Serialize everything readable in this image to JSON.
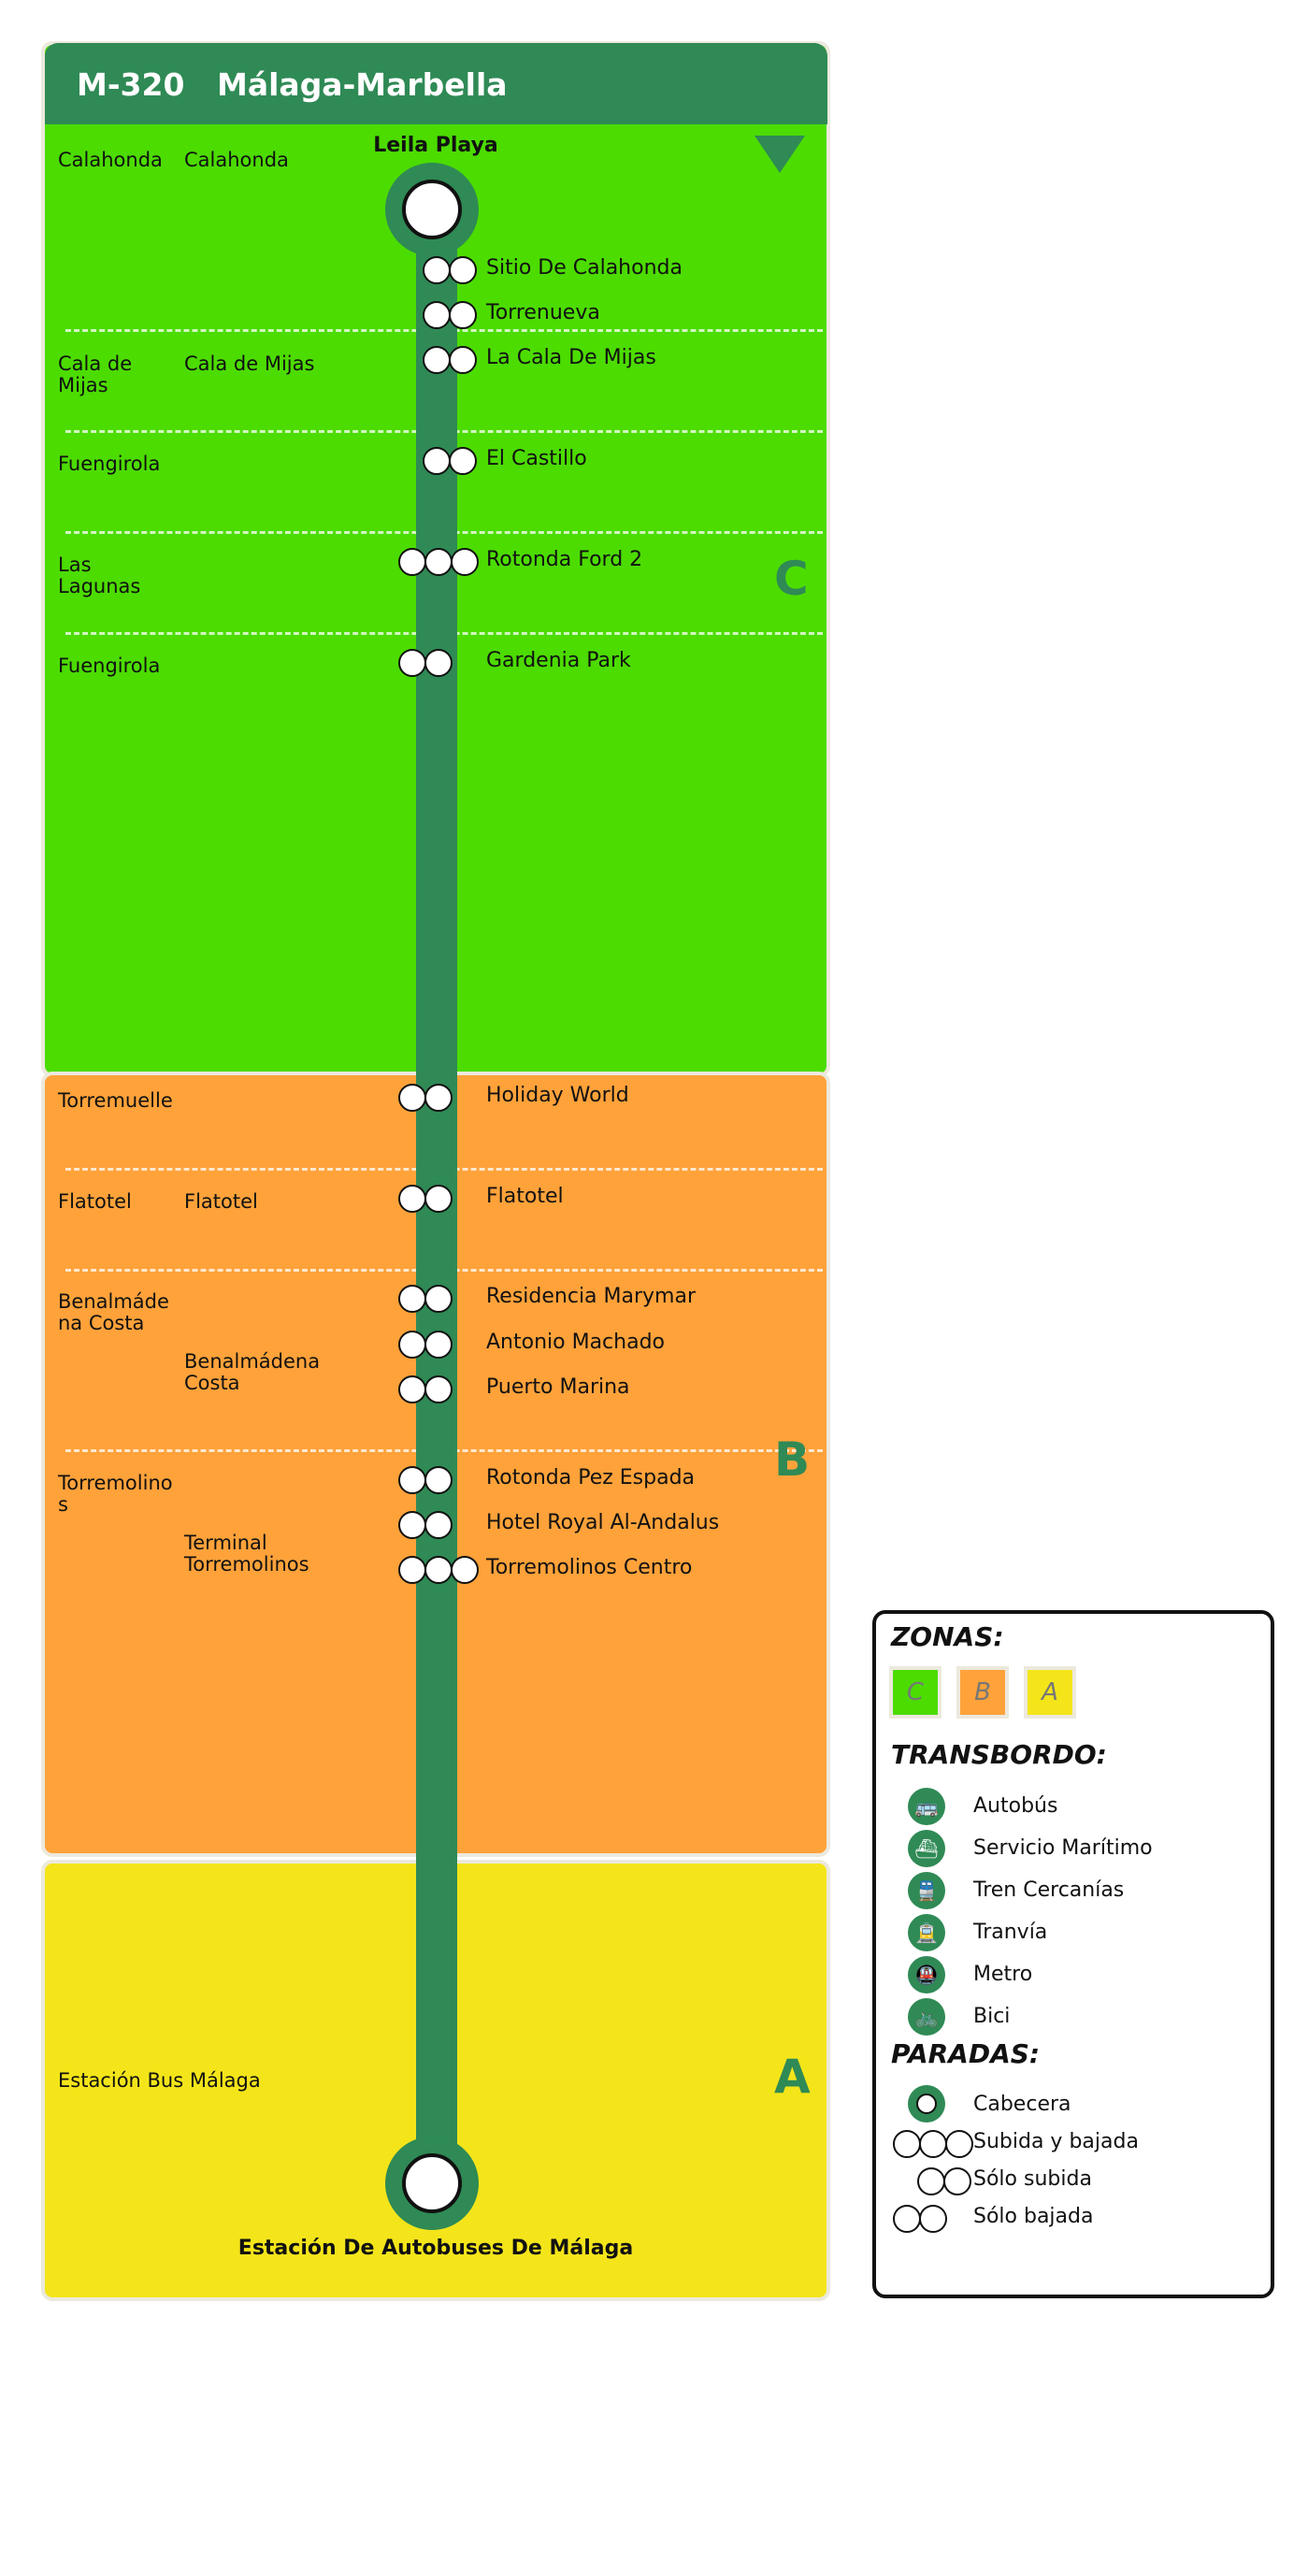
{
  "route": {
    "code": "M-320",
    "name": "Málaga-Marbella"
  },
  "colors": {
    "zone_c": "#4cdc00",
    "zone_b": "#ffa23a",
    "zone_a": "#f4e51a",
    "line": "#2f8a55"
  },
  "zones": [
    {
      "letter": "C"
    },
    {
      "letter": "B"
    },
    {
      "letter": "A"
    }
  ],
  "terminals": {
    "start": "Leila Playa",
    "end": "Estación De Autobuses De Málaga"
  },
  "localities": [
    {
      "text": "Calahonda"
    },
    {
      "text": "Calahonda"
    },
    {
      "text": "Cala de Mijas"
    },
    {
      "text": "Cala de Mijas"
    },
    {
      "text": "Fuengirola"
    },
    {
      "text": "Las Lagunas"
    },
    {
      "text": "Fuengirola"
    },
    {
      "text": "Torremuelle"
    },
    {
      "text": "Flatotel"
    },
    {
      "text": "Flatotel"
    },
    {
      "text": "Benalmádena Costa"
    },
    {
      "text": "Benalmádena Costa"
    },
    {
      "text": "Torremolinos"
    },
    {
      "text": "Terminal Torremolinos"
    },
    {
      "text": "Estación Bus Málaga"
    }
  ],
  "stops": [
    {
      "name": "Sitio De Calahonda",
      "type": "Sólo subida"
    },
    {
      "name": "Torrenueva",
      "type": "Sólo subida"
    },
    {
      "name": "La Cala De Mijas",
      "type": "Sólo subida"
    },
    {
      "name": "El Castillo",
      "type": "Sólo subida"
    },
    {
      "name": "Rotonda Ford 2",
      "type": "Subida y bajada"
    },
    {
      "name": "Gardenia Park",
      "type": "Sólo bajada"
    },
    {
      "name": "Holiday World",
      "type": "Sólo bajada"
    },
    {
      "name": "Flatotel",
      "type": "Sólo bajada"
    },
    {
      "name": "Residencia Marymar",
      "type": "Sólo bajada"
    },
    {
      "name": "Antonio Machado",
      "type": "Sólo bajada"
    },
    {
      "name": "Puerto Marina",
      "type": "Sólo bajada"
    },
    {
      "name": "Rotonda Pez Espada",
      "type": "Sólo bajada"
    },
    {
      "name": "Hotel Royal Al-Andalus",
      "type": "Sólo bajada"
    },
    {
      "name": "Torremolinos Centro",
      "type": "Subida y bajada"
    }
  ],
  "legend": {
    "zonas_title": "ZONAS:",
    "zonas": [
      "C",
      "B",
      "A"
    ],
    "transbordo_title": "TRANSBORDO:",
    "transbordo": [
      {
        "label": "Autobús",
        "icon": "bus-icon"
      },
      {
        "label": "Servicio Marítimo",
        "icon": "ferry-icon"
      },
      {
        "label": "Tren Cercanías",
        "icon": "train-icon"
      },
      {
        "label": "Tranvía",
        "icon": "tram-icon"
      },
      {
        "label": "Metro",
        "icon": "metro-icon"
      },
      {
        "label": "Bici",
        "icon": "bicycle-icon"
      }
    ],
    "paradas_title": "PARADAS:",
    "paradas": [
      {
        "label": "Cabecera"
      },
      {
        "label": "Subida y bajada"
      },
      {
        "label": "Sólo subida"
      },
      {
        "label": "Sólo bajada"
      }
    ]
  }
}
